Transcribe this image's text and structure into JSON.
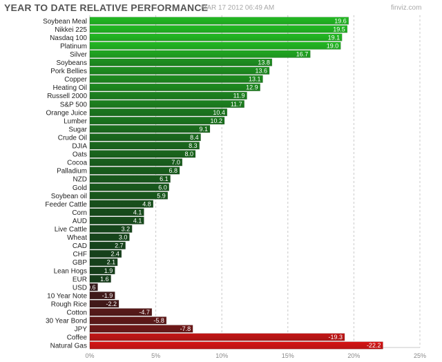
{
  "header": {
    "title": "YEAR TO DATE RELATIVE PERFORMANCE",
    "timestamp": "MAR 17 2012 06:49 AM",
    "watermark": "finviz.com"
  },
  "colors": {
    "positive_dark": "#15361a",
    "positive_bright": "#22b922",
    "negative_dark": "#2e1a1a",
    "negative_bright": "#d81414",
    "grid": "#c8c8c8",
    "label": "#222222",
    "axis_label": "#888888"
  },
  "chart_data": {
    "type": "bar",
    "orientation": "horizontal",
    "title": "YEAR TO DATE RELATIVE PERFORMANCE",
    "xlabel": "",
    "ylabel": "",
    "xlim": [
      0,
      25
    ],
    "xticks": [
      0,
      5,
      10,
      15,
      20,
      25
    ],
    "xtick_labels": [
      "0%",
      "5%",
      "10%",
      "15%",
      "20%",
      "25%"
    ],
    "grid": true,
    "categories": [
      "Soybean Meal",
      "Nikkei 225",
      "Nasdaq 100",
      "Platinum",
      "Silver",
      "Soybeans",
      "Pork Bellies",
      "Copper",
      "Heating Oil",
      "Russell 2000",
      "S&P 500",
      "Orange Juice",
      "Lumber",
      "Sugar",
      "Crude Oil",
      "DJIA",
      "Oats",
      "Cocoa",
      "Palladium",
      "NZD",
      "Gold",
      "Soybean oil",
      "Feeder Cattle",
      "Corn",
      "AUD",
      "Live Cattle",
      "Wheat",
      "CAD",
      "CHF",
      "GBP",
      "Lean Hogs",
      "EUR",
      "USD",
      "10 Year Note",
      "Rough Rice",
      "Cotton",
      "30 Year Bond",
      "JPY",
      "Coffee",
      "Natural Gas"
    ],
    "values": [
      19.6,
      19.5,
      19.1,
      19.0,
      16.7,
      13.8,
      13.6,
      13.1,
      12.9,
      11.9,
      11.7,
      10.4,
      10.2,
      9.1,
      8.4,
      8.3,
      8.0,
      7.0,
      6.8,
      6.1,
      6.0,
      5.9,
      4.8,
      4.1,
      4.1,
      3.2,
      3.0,
      2.7,
      2.4,
      2.1,
      1.9,
      1.6,
      -0.6,
      -1.9,
      -2.2,
      -4.7,
      -5.8,
      -7.8,
      -19.3,
      -22.2
    ],
    "value_labels": [
      "19.6",
      "19.5",
      "19.1",
      "19.0",
      "16.7",
      "13.8",
      "13.6",
      "13.1",
      "12.9",
      "11.9",
      "11.7",
      "10.4",
      "10.2",
      "9.1",
      "8.4",
      "8.3",
      "8.0",
      "7.0",
      "6.8",
      "6.1",
      "6.0",
      "5.9",
      "4.8",
      "4.1",
      "4.1",
      "3.2",
      "3.0",
      "2.7",
      "2.4",
      "2.1",
      "1.9",
      "1.6",
      "-0.6",
      "-1.9",
      "-2.2",
      "-4.7",
      "-5.8",
      "-7.8",
      "-19.3",
      "-22.2"
    ]
  }
}
